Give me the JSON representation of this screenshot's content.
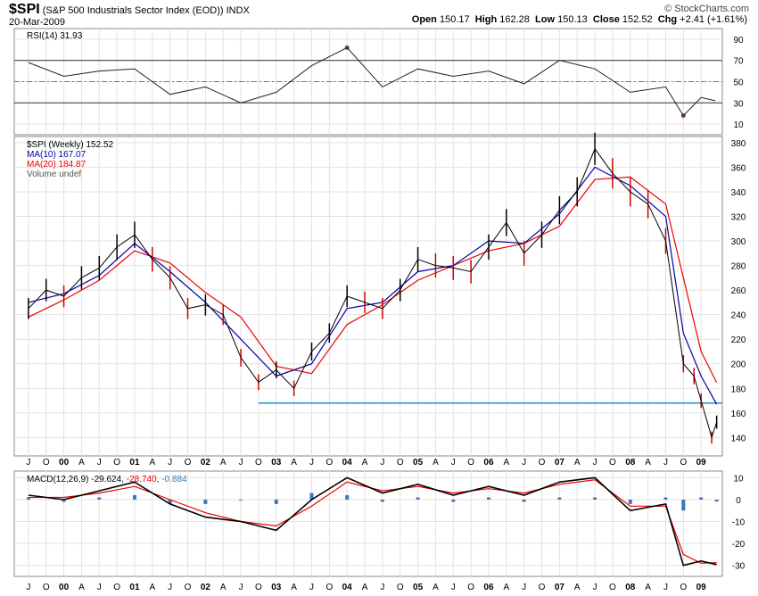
{
  "header": {
    "symbol": "$SPI",
    "description": "(S&P 500 Industrials Sector Index (EOD))",
    "exchange": "INDX",
    "date": "20-Mar-2009",
    "brand": "© StockCharts.com",
    "quote": {
      "open_label": "Open",
      "open": "150.17",
      "high_label": "High",
      "high": "162.28",
      "low_label": "Low",
      "low": "150.13",
      "close_label": "Close",
      "close": "152.52",
      "chg_label": "Chg",
      "chg": "+2.41 (+1.61%)"
    }
  },
  "legend": {
    "rsi": "RSI(14) 31.93",
    "price": "$SPI (Weekly) 152.52",
    "ma10": "MA(10) 167.07",
    "ma20": "MA(20) 184.87",
    "volume": "Volume undef",
    "macd_label": "MACD(12,26,9)",
    "macd_value": "-29.624",
    "signal_value": "-28.740",
    "hist_value": "-0.884"
  },
  "colors": {
    "price": "#000000",
    "down": "#cc0000",
    "ma10": "#0000aa",
    "ma20": "#ee0000",
    "support": "#1e8fd6",
    "hist": "#3a78b8",
    "rsi_over": "#3d6b3d",
    "rsi_under": "#8a4040",
    "grid": "#e2e2e2"
  },
  "chart_data": [
    {
      "type": "line",
      "panel": "rsi",
      "title": "RSI(14)",
      "ylim": [
        0,
        100
      ],
      "y_ticks": [
        10,
        30,
        50,
        70,
        90
      ],
      "reference_lines": [
        30,
        50,
        70
      ],
      "x": [
        1999.5,
        2000.0,
        2000.5,
        2001.0,
        2001.5,
        2002.0,
        2002.5,
        2003.0,
        2003.5,
        2004.0,
        2004.5,
        2005.0,
        2005.5,
        2006.0,
        2006.5,
        2007.0,
        2007.5,
        2008.0,
        2008.5,
        2008.75,
        2009.0,
        2009.2
      ],
      "values": [
        68,
        55,
        60,
        62,
        38,
        45,
        30,
        40,
        65,
        82,
        45,
        62,
        55,
        60,
        48,
        70,
        62,
        40,
        45,
        18,
        35,
        32
      ]
    },
    {
      "type": "line",
      "panel": "price",
      "title": "$SPI (Weekly)",
      "ylim": [
        125,
        385
      ],
      "y_ticks": [
        140,
        160,
        180,
        200,
        220,
        240,
        260,
        280,
        300,
        320,
        340,
        360,
        380
      ],
      "support_level": 168,
      "series": [
        {
          "name": "$SPI",
          "x": [
            1999.5,
            1999.75,
            2000.0,
            2000.25,
            2000.5,
            2000.75,
            2001.0,
            2001.25,
            2001.5,
            2001.75,
            2002.0,
            2002.25,
            2002.5,
            2002.75,
            2003.0,
            2003.25,
            2003.5,
            2003.75,
            2004.0,
            2004.25,
            2004.5,
            2004.75,
            2005.0,
            2005.25,
            2005.5,
            2005.75,
            2006.0,
            2006.25,
            2006.5,
            2006.75,
            2007.0,
            2007.25,
            2007.5,
            2007.75,
            2008.0,
            2008.25,
            2008.5,
            2008.75,
            2008.9,
            2009.0,
            2009.15,
            2009.22
          ],
          "values": [
            245,
            260,
            255,
            270,
            278,
            295,
            305,
            285,
            270,
            245,
            248,
            240,
            205,
            185,
            195,
            180,
            210,
            225,
            255,
            250,
            245,
            260,
            285,
            280,
            278,
            275,
            295,
            315,
            290,
            305,
            325,
            340,
            375,
            355,
            340,
            330,
            300,
            200,
            190,
            170,
            140,
            152.52
          ]
        },
        {
          "name": "MA(10)",
          "x": [
            1999.5,
            2000.0,
            2000.5,
            2001.0,
            2001.5,
            2002.0,
            2002.5,
            2003.0,
            2003.5,
            2004.0,
            2004.5,
            2005.0,
            2005.5,
            2006.0,
            2006.5,
            2007.0,
            2007.5,
            2008.0,
            2008.5,
            2008.75,
            2009.0,
            2009.22
          ],
          "values": [
            250,
            257,
            272,
            298,
            275,
            250,
            220,
            190,
            200,
            245,
            250,
            275,
            280,
            300,
            298,
            322,
            360,
            345,
            320,
            225,
            190,
            167.07
          ]
        },
        {
          "name": "MA(20)",
          "x": [
            1999.5,
            2000.0,
            2000.5,
            2001.0,
            2001.5,
            2002.0,
            2002.5,
            2003.0,
            2003.5,
            2004.0,
            2004.5,
            2005.0,
            2005.5,
            2006.0,
            2006.5,
            2007.0,
            2007.5,
            2008.0,
            2008.5,
            2008.75,
            2009.0,
            2009.22
          ],
          "values": [
            238,
            252,
            268,
            292,
            282,
            258,
            238,
            198,
            192,
            232,
            248,
            268,
            280,
            292,
            298,
            312,
            350,
            352,
            330,
            270,
            210,
            184.87
          ]
        }
      ]
    },
    {
      "type": "line",
      "panel": "macd",
      "title": "MACD(12,26,9)",
      "ylim": [
        -35,
        13
      ],
      "y_ticks": [
        -30,
        -20,
        -10,
        0,
        10
      ],
      "series": [
        {
          "name": "MACD",
          "x": [
            1999.5,
            2000.0,
            2000.5,
            2001.0,
            2001.5,
            2002.0,
            2002.5,
            2003.0,
            2003.5,
            2004.0,
            2004.5,
            2005.0,
            2005.5,
            2006.0,
            2006.5,
            2007.0,
            2007.5,
            2008.0,
            2008.5,
            2008.75,
            2009.0,
            2009.22
          ],
          "values": [
            2,
            0,
            4,
            8,
            -2,
            -8,
            -10,
            -14,
            0,
            10,
            3,
            7,
            2,
            6,
            2,
            8,
            10,
            -5,
            -2,
            -30,
            -28,
            -29.624
          ]
        },
        {
          "name": "Signal",
          "x": [
            1999.5,
            2000.0,
            2000.5,
            2001.0,
            2001.5,
            2002.0,
            2002.5,
            2003.0,
            2003.5,
            2004.0,
            2004.5,
            2005.0,
            2005.5,
            2006.0,
            2006.5,
            2007.0,
            2007.5,
            2008.0,
            2008.5,
            2008.75,
            2009.0,
            2009.22
          ],
          "values": [
            1,
            1,
            3,
            6,
            0,
            -6,
            -10,
            -12,
            -3,
            8,
            4,
            6,
            3,
            5,
            3,
            7,
            9,
            -3,
            -3,
            -25,
            -29,
            -28.74
          ]
        },
        {
          "name": "Histogram",
          "x": [
            1999.5,
            2000.0,
            2000.5,
            2001.0,
            2001.5,
            2002.0,
            2002.5,
            2003.0,
            2003.5,
            2004.0,
            2004.5,
            2005.0,
            2005.5,
            2006.0,
            2006.5,
            2007.0,
            2007.5,
            2008.0,
            2008.5,
            2008.75,
            2009.0,
            2009.22
          ],
          "values": [
            1,
            -1,
            1,
            2,
            -2,
            -2,
            0,
            -2,
            3,
            2,
            -1,
            1,
            -1,
            1,
            -1,
            1,
            1,
            -2,
            1,
            -5,
            1,
            -0.884
          ]
        }
      ]
    }
  ],
  "x_axis": {
    "labels": [
      {
        "t": 1999.5,
        "text": "J"
      },
      {
        "t": 1999.75,
        "text": "O"
      },
      {
        "t": 2000.0,
        "text": "00"
      },
      {
        "t": 2000.25,
        "text": "A"
      },
      {
        "t": 2000.5,
        "text": "J"
      },
      {
        "t": 2000.75,
        "text": "O"
      },
      {
        "t": 2001.0,
        "text": "01"
      },
      {
        "t": 2001.25,
        "text": "A"
      },
      {
        "t": 2001.5,
        "text": "J"
      },
      {
        "t": 2001.75,
        "text": "O"
      },
      {
        "t": 2002.0,
        "text": "02"
      },
      {
        "t": 2002.25,
        "text": "A"
      },
      {
        "t": 2002.5,
        "text": "J"
      },
      {
        "t": 2002.75,
        "text": "O"
      },
      {
        "t": 2003.0,
        "text": "03"
      },
      {
        "t": 2003.25,
        "text": "A"
      },
      {
        "t": 2003.5,
        "text": "J"
      },
      {
        "t": 2003.75,
        "text": "O"
      },
      {
        "t": 2004.0,
        "text": "04"
      },
      {
        "t": 2004.25,
        "text": "A"
      },
      {
        "t": 2004.5,
        "text": "J"
      },
      {
        "t": 2004.75,
        "text": "O"
      },
      {
        "t": 2005.0,
        "text": "05"
      },
      {
        "t": 2005.25,
        "text": "A"
      },
      {
        "t": 2005.5,
        "text": "J"
      },
      {
        "t": 2005.75,
        "text": "O"
      },
      {
        "t": 2006.0,
        "text": "06"
      },
      {
        "t": 2006.25,
        "text": "A"
      },
      {
        "t": 2006.5,
        "text": "J"
      },
      {
        "t": 2006.75,
        "text": "O"
      },
      {
        "t": 2007.0,
        "text": "07"
      },
      {
        "t": 2007.25,
        "text": "A"
      },
      {
        "t": 2007.5,
        "text": "J"
      },
      {
        "t": 2007.75,
        "text": "O"
      },
      {
        "t": 2008.0,
        "text": "08"
      },
      {
        "t": 2008.25,
        "text": "A"
      },
      {
        "t": 2008.5,
        "text": "J"
      },
      {
        "t": 2008.75,
        "text": "O"
      },
      {
        "t": 2009.0,
        "text": "09"
      }
    ],
    "range": [
      1999.3,
      2009.3
    ]
  }
}
